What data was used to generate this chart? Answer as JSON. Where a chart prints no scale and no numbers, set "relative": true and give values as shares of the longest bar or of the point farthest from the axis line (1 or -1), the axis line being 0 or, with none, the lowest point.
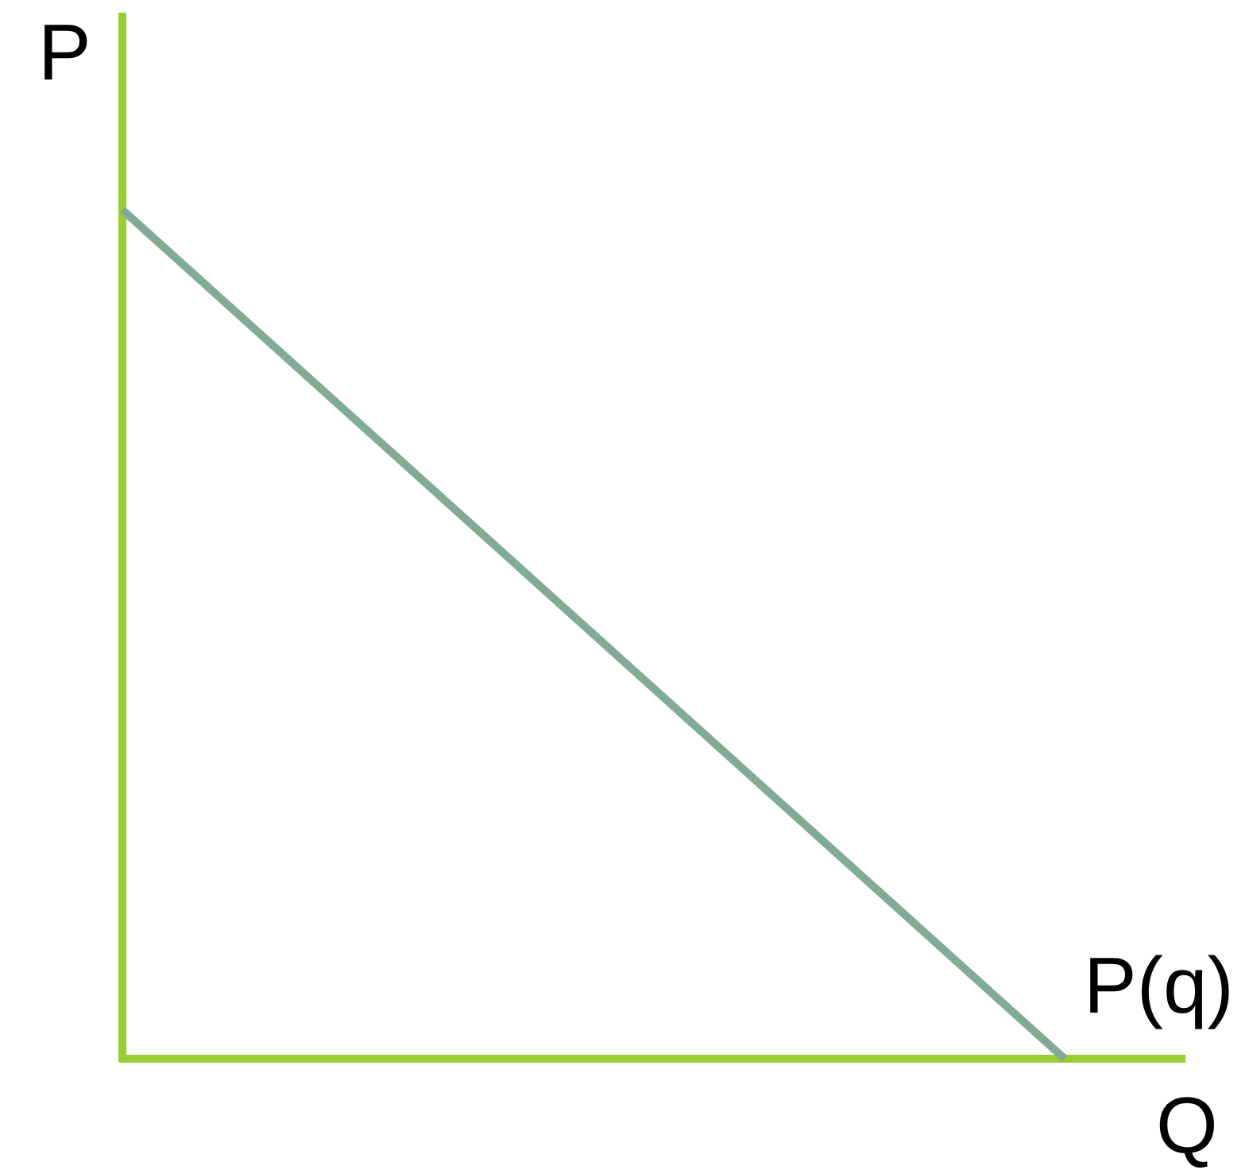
{
  "chart_data": {
    "type": "line",
    "relative": true,
    "xlabel": "Q",
    "ylabel": "P",
    "categories": [
      null,
      null
    ],
    "series": [
      {
        "name": "P(q)",
        "color": "#82ab96",
        "values": [
          1,
          0
        ]
      }
    ]
  }
}
